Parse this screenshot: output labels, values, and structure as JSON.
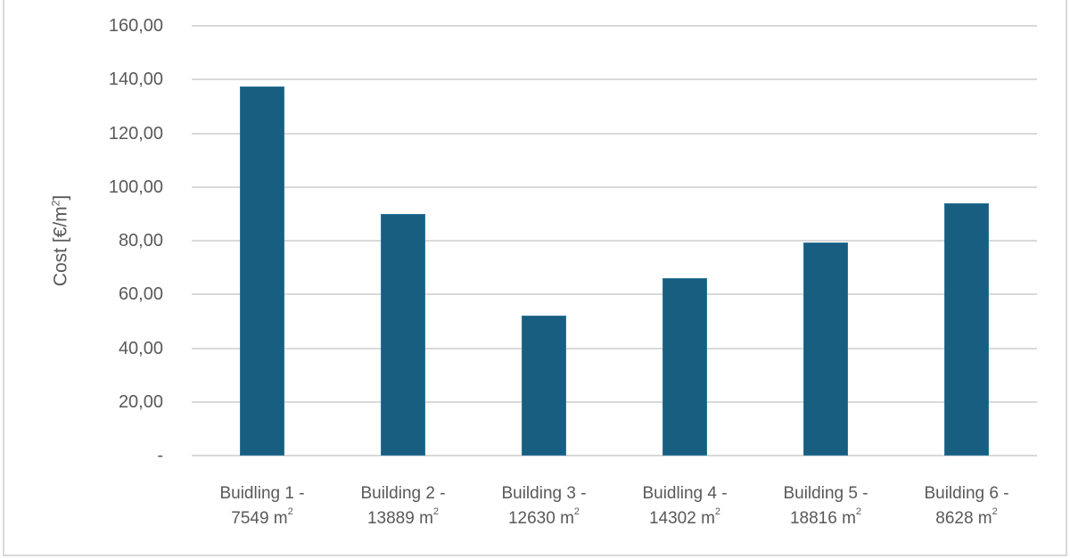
{
  "chart_data": {
    "type": "bar",
    "title": "",
    "xlabel": "",
    "ylabel": "Cost [€/m²]",
    "ylabel_base": "Cost [€/m",
    "ylabel_sup": "2",
    "ylabel_tail": "]",
    "ylim": [
      0,
      160
    ],
    "yticks": [
      "-",
      "20,00",
      "40,00",
      "60,00",
      "80,00",
      "100,00",
      "120,00",
      "140,00",
      "160,00"
    ],
    "grid": true,
    "legend": null,
    "bar_color": "#175e80",
    "categories": [
      "Buidling 1 - 7549 m²",
      "Building 2 - 13889 m²",
      "Building 3 - 12630 m²",
      "Buidling 4 - 14302 m²",
      "Building 5 - 18816 m²",
      "Building 6 - 8628 m²"
    ],
    "category_labels": [
      {
        "line1": "Buidling 1 -",
        "area": "7549 m",
        "sup": "2"
      },
      {
        "line1": "Building 2 -",
        "area": "13889 m",
        "sup": "2"
      },
      {
        "line1": "Building 3 -",
        "area": "12630 m",
        "sup": "2"
      },
      {
        "line1": "Buidling 4 -",
        "area": "14302 m",
        "sup": "2"
      },
      {
        "line1": "Building 5 -",
        "area": "18816 m",
        "sup": "2"
      },
      {
        "line1": "Building 6 -",
        "area": "8628 m",
        "sup": "2"
      }
    ],
    "values": [
      137.5,
      90.0,
      52.0,
      66.0,
      79.5,
      94.0
    ]
  }
}
